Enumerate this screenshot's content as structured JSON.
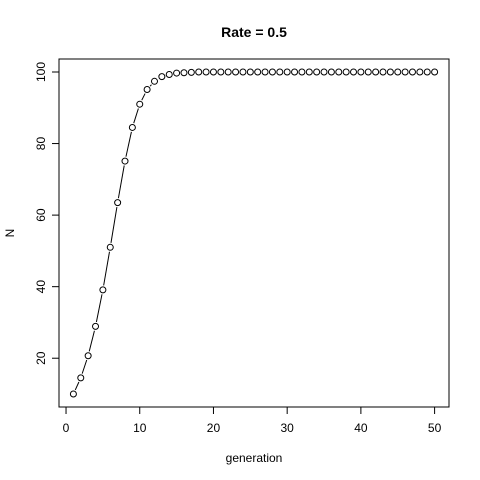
{
  "chart_data": {
    "type": "line",
    "title": "Rate = 0.5",
    "xlabel": "generation",
    "ylabel": "N",
    "xlim": [
      1,
      50
    ],
    "ylim": [
      10,
      100
    ],
    "xticks": [
      0,
      10,
      20,
      30,
      40,
      50
    ],
    "yticks": [
      20,
      40,
      60,
      80,
      100
    ],
    "style": "points-and-lines",
    "series": [
      {
        "name": "N",
        "x": [
          1,
          2,
          3,
          4,
          5,
          6,
          7,
          8,
          9,
          10,
          11,
          12,
          13,
          14,
          15,
          16,
          17,
          18,
          19,
          20,
          21,
          22,
          23,
          24,
          25,
          26,
          27,
          28,
          29,
          30,
          31,
          32,
          33,
          34,
          35,
          36,
          37,
          38,
          39,
          40,
          41,
          42,
          43,
          44,
          45,
          46,
          47,
          48,
          49,
          50
        ],
        "values": [
          10,
          14.5,
          20.7,
          28.9,
          39.1,
          51,
          63.5,
          75.1,
          84.5,
          91,
          95.1,
          97.4,
          98.7,
          99.3,
          99.7,
          99.8,
          99.9,
          100,
          100,
          100,
          100,
          100,
          100,
          100,
          100,
          100,
          100,
          100,
          100,
          100,
          100,
          100,
          100,
          100,
          100,
          100,
          100,
          100,
          100,
          100,
          100,
          100,
          100,
          100,
          100,
          100,
          100,
          100,
          100,
          100
        ]
      }
    ]
  }
}
